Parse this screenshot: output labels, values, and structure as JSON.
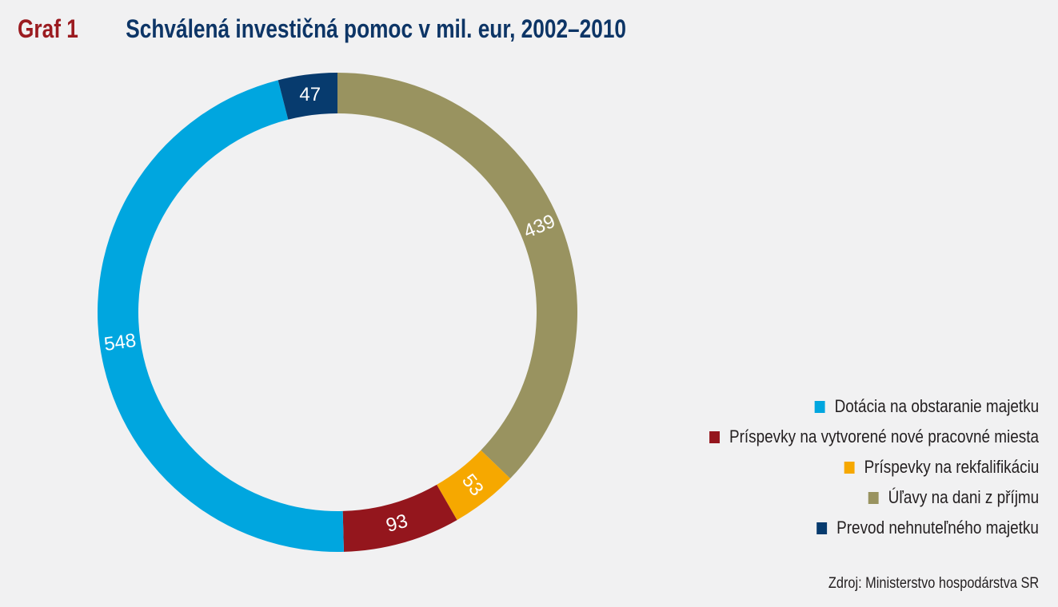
{
  "header": {
    "label": "Graf 1",
    "title": "Schválená investičná pomoc v mil. eur, 2002–2010"
  },
  "chart_data": {
    "type": "pie",
    "variant": "donut",
    "start_angle_deg": 0,
    "direction": "clockwise",
    "slices": [
      {
        "label": "Úľavy na dani z příjmu",
        "value": 439,
        "color": "#999360"
      },
      {
        "label": "Príspevky na rekfalifikáciu",
        "value": 53,
        "color": "#f6a800"
      },
      {
        "label": "Príspevky na vytvorené nové pracovné miesta",
        "value": 93,
        "color": "#94161d"
      },
      {
        "label": "Dotácia na obstaranie majetku",
        "value": 548,
        "color": "#00a6df"
      },
      {
        "label": "Prevod nehnuteľného majetku",
        "value": 47,
        "color": "#073b6e"
      }
    ],
    "legend_position": "bottom-right"
  },
  "legend": [
    {
      "label": "Dotácia na obstaranie majetku",
      "color": "#00a6df"
    },
    {
      "label": "Príspevky na vytvorené nové pracovné miesta",
      "color": "#94161d"
    },
    {
      "label": "Príspevky na rekfalifikáciu",
      "color": "#f6a800"
    },
    {
      "label": "Úľavy na dani z příjmu",
      "color": "#999360"
    },
    {
      "label": "Prevod nehnuteľného majetku",
      "color": "#073b6e"
    }
  ],
  "source": "Zdroj: Ministerstvo hospodárstva SR"
}
